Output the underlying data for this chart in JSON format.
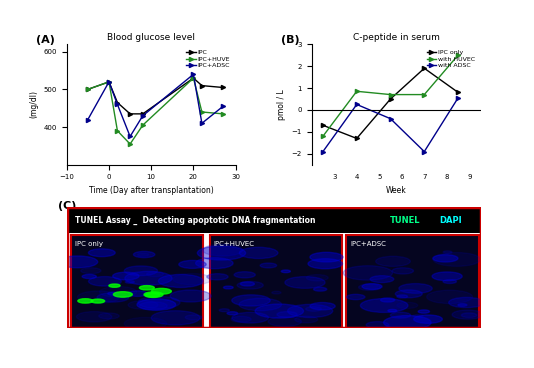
{
  "panel_A": {
    "title": "Blood glucose level",
    "xlabel": "Time (Day after transplantation)",
    "ylabel": "(mg/dl)",
    "xlim": [
      -10,
      30
    ],
    "ylim": [
      300,
      620
    ],
    "yticks": [
      400,
      500,
      600
    ],
    "xticks": [
      -10,
      0,
      10,
      20,
      30
    ],
    "ipc_x": [
      -5,
      0,
      2,
      5,
      8,
      20,
      22,
      27
    ],
    "ipc_y": [
      500,
      520,
      465,
      435,
      435,
      530,
      510,
      505
    ],
    "huvec_x": [
      -5,
      0,
      2,
      5,
      8,
      20,
      22,
      27
    ],
    "huvec_y": [
      500,
      520,
      390,
      355,
      405,
      530,
      440,
      435
    ],
    "adsc_x": [
      -5,
      0,
      2,
      5,
      8,
      20,
      22,
      27
    ],
    "adsc_y": [
      420,
      520,
      460,
      375,
      430,
      540,
      410,
      455
    ],
    "ipc_color": "#000000",
    "huvec_color": "#228B22",
    "adsc_color": "#00008B",
    "legend_labels": [
      "IPC",
      "IPC+HUVE",
      "IPC+ADSC"
    ]
  },
  "panel_B": {
    "title": "C-peptide in serum",
    "xlabel": "Week",
    "ylabel": "pmol / L",
    "xlim": [
      2,
      9.5
    ],
    "ylim": [
      -2.5,
      3.0
    ],
    "yticks": [
      -2,
      -1,
      0,
      1,
      2,
      3
    ],
    "xticks": [
      3,
      4,
      5,
      6,
      7,
      8,
      9
    ],
    "ipc_x": [
      2.5,
      4,
      5.5,
      7,
      8.5
    ],
    "ipc_y": [
      -0.7,
      -1.3,
      0.5,
      1.9,
      0.8
    ],
    "huvec_x": [
      2.5,
      4,
      5.5,
      7,
      8.5
    ],
    "huvec_y": [
      -1.2,
      0.85,
      0.7,
      0.7,
      2.5
    ],
    "adsc_x": [
      2.5,
      4,
      5.5,
      7,
      8.5
    ],
    "adsc_y": [
      -1.9,
      0.25,
      -0.4,
      -1.9,
      0.55
    ],
    "ipc_color": "#000000",
    "huvec_color": "#228B22",
    "adsc_color": "#00008B",
    "legend_labels": [
      "IPC only",
      "with HUVEC",
      "with ADSC"
    ]
  },
  "panel_C": {
    "header_text": "TUNEL Assay _  Detecting apoptotic DNA fragmentation",
    "tunel_label": "TUNEL",
    "dapi_label": "DAPI",
    "sub_labels": [
      "IPC only",
      "IPC+HUVEC",
      "IPC+ADSC"
    ],
    "bg_color": "#000000",
    "header_bg": "#000000",
    "border_color": "#CC0000"
  }
}
